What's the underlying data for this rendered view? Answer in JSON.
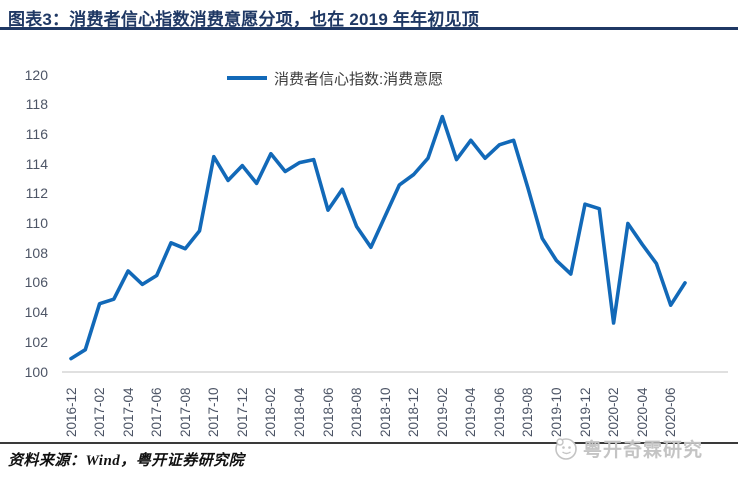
{
  "header": {
    "title": "图表3：消费者信心指数消费意愿分项，也在 2019 年年初见顶"
  },
  "legend": {
    "label": "消费者信心指数:消费意愿"
  },
  "footer": {
    "source": "资料来源：Wind，粤开证券研究院",
    "watermark": "粤开奇霖研究"
  },
  "colors": {
    "line": "#1269B8",
    "title": "#1F3864",
    "title_rule": "#1F3864",
    "axis_text": "#4d5566",
    "axis_line": "#D6D6D6",
    "watermark": "#C4C4C4"
  },
  "chart_data": {
    "type": "line",
    "title": "消费者信心指数消费意愿分项",
    "series_name": "消费者信心指数:消费意愿",
    "x": [
      "2016-12",
      "2017-01",
      "2017-02",
      "2017-03",
      "2017-04",
      "2017-05",
      "2017-06",
      "2017-07",
      "2017-08",
      "2017-09",
      "2017-10",
      "2017-11",
      "2017-12",
      "2018-01",
      "2018-02",
      "2018-03",
      "2018-04",
      "2018-05",
      "2018-06",
      "2018-07",
      "2018-08",
      "2018-09",
      "2018-10",
      "2018-11",
      "2018-12",
      "2019-01",
      "2019-02",
      "2019-03",
      "2019-04",
      "2019-05",
      "2019-06",
      "2019-07",
      "2019-08",
      "2019-09",
      "2019-10",
      "2019-11",
      "2019-12",
      "2020-01",
      "2020-02",
      "2020-03",
      "2020-04",
      "2020-05",
      "2020-06",
      "2020-07"
    ],
    "values": [
      100.9,
      101.5,
      104.6,
      104.9,
      106.8,
      105.9,
      106.5,
      108.7,
      108.3,
      109.5,
      114.5,
      112.9,
      113.9,
      112.7,
      114.7,
      113.5,
      114.1,
      114.3,
      110.9,
      112.3,
      109.8,
      108.4,
      110.5,
      112.6,
      113.3,
      114.4,
      117.2,
      114.3,
      115.6,
      114.4,
      115.3,
      115.6,
      112.4,
      109.0,
      107.5,
      106.6,
      111.3,
      111.0,
      103.3,
      110.0,
      108.6,
      107.3,
      104.5,
      106.0
    ],
    "x_tick_labels": [
      "2016-12",
      "2017-02",
      "2017-04",
      "2017-06",
      "2017-08",
      "2017-10",
      "2017-12",
      "2018-02",
      "2018-04",
      "2018-06",
      "2018-08",
      "2018-10",
      "2018-12",
      "2019-02",
      "2019-04",
      "2019-06",
      "2019-08",
      "2019-10",
      "2019-12",
      "2020-02",
      "2020-04",
      "2020-06"
    ],
    "x_tick_every": 2,
    "y_ticks": [
      100,
      102,
      104,
      106,
      108,
      110,
      112,
      114,
      116,
      118,
      120
    ],
    "ylim": [
      100,
      120
    ],
    "grid": false,
    "legend_position": "top-center",
    "xlabel": "",
    "ylabel": ""
  }
}
